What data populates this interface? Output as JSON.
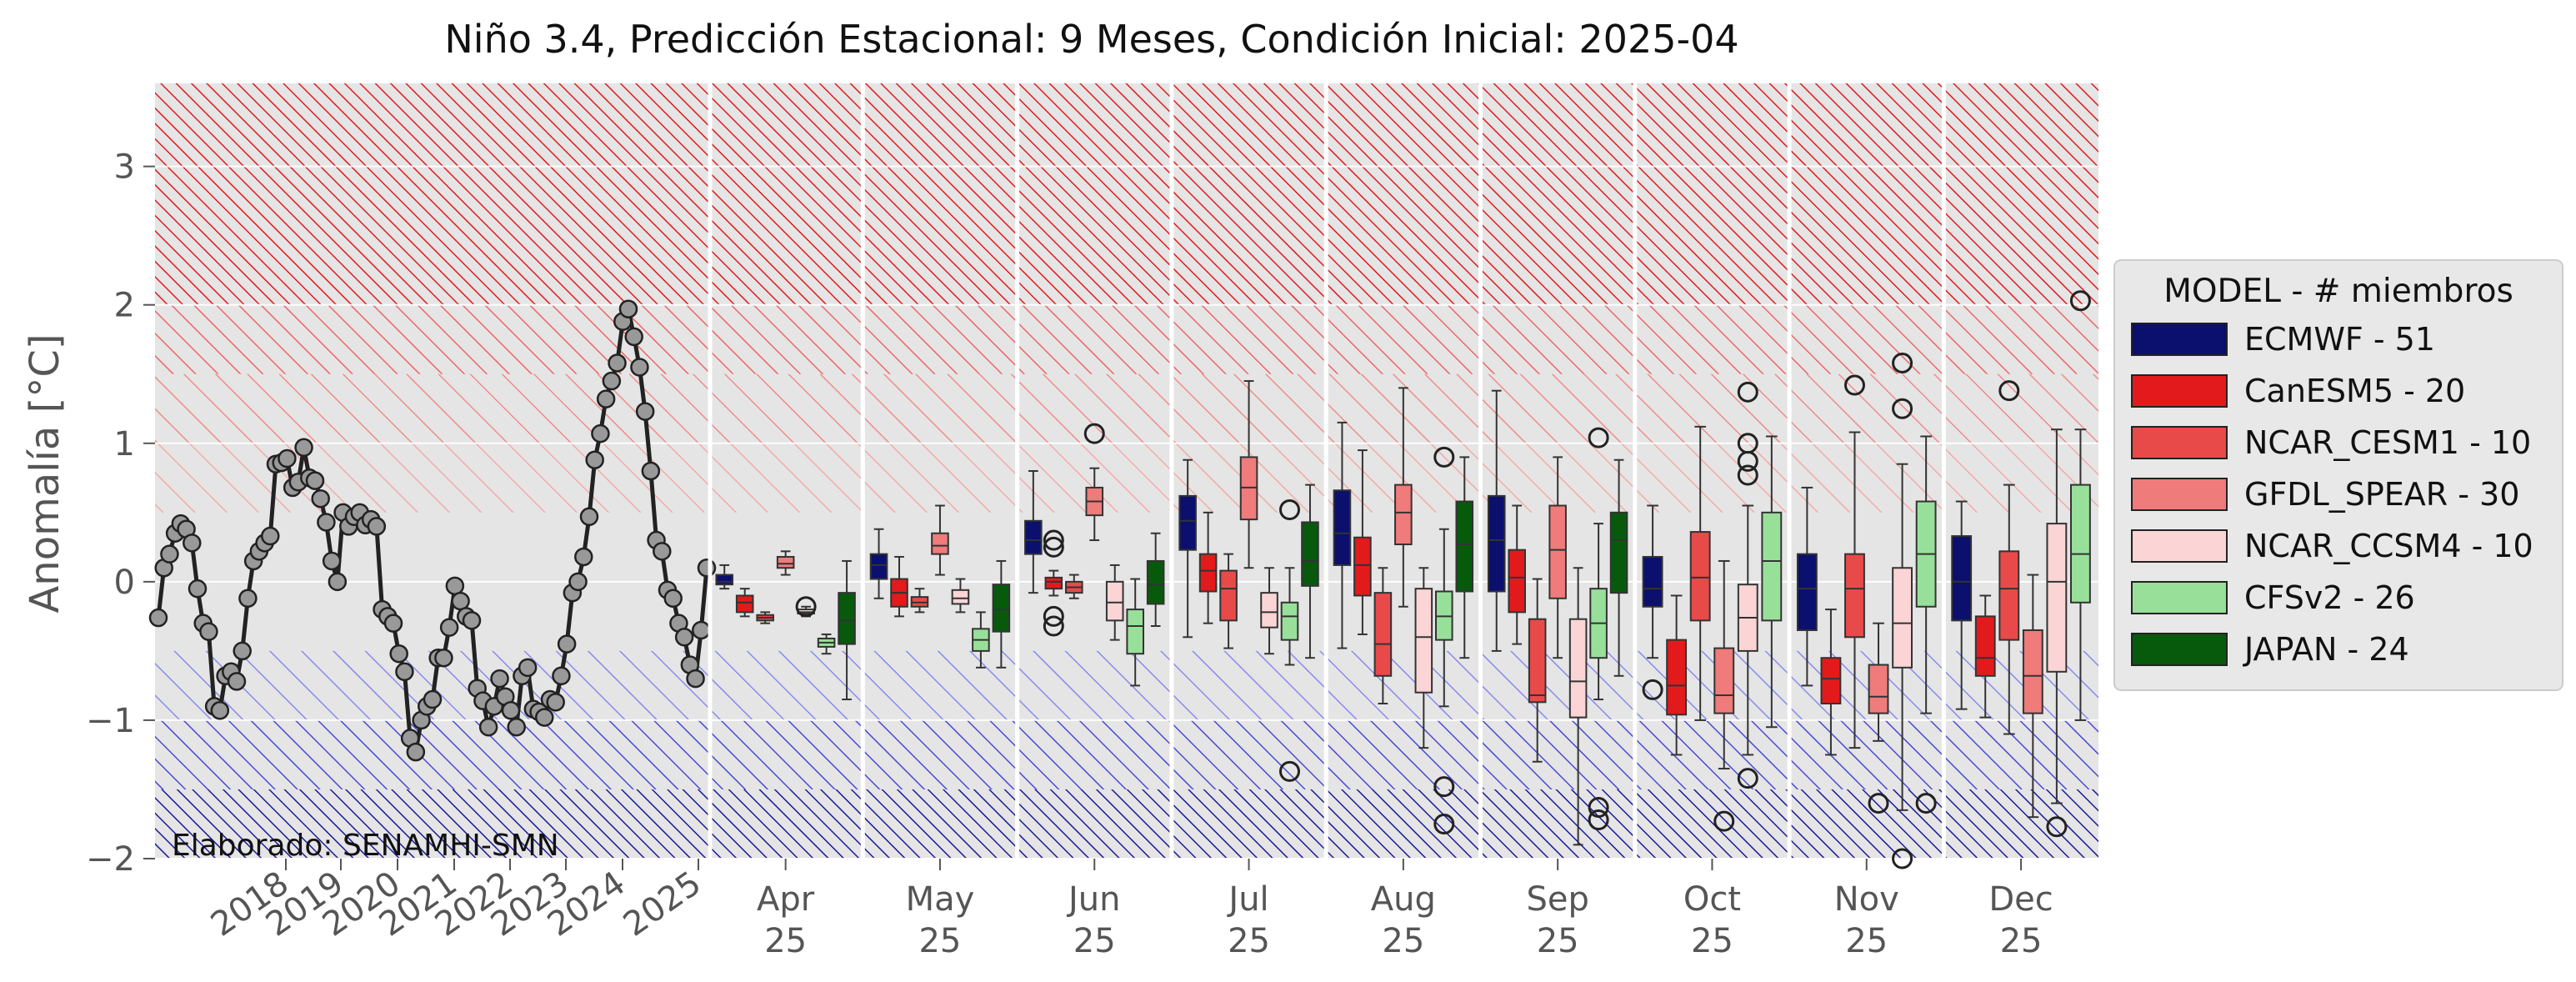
{
  "chart_data": {
    "type": "box",
    "title": "Niño 3.4, Predicción Estacional: 9 Meses, Condición Inicial: 2025-04",
    "ylabel": "Anomalía [°C]",
    "xlabel": "",
    "ylim": [
      -2,
      3.6
    ],
    "yticks": [
      3,
      2,
      1,
      0,
      -1,
      -2
    ],
    "ytick_labels": [
      "3",
      "2",
      "1",
      "0",
      "−1",
      "−2"
    ],
    "grid": true,
    "annotation": "Elaborado: SENAMHI-SMN",
    "legend": {
      "title": "MODEL - # miembros",
      "placement": "right",
      "entries": [
        {
          "label": "ECMWF - 51",
          "color": "#0b0f6e"
        },
        {
          "label": "CanESM5 - 20",
          "color": "#e31a1c"
        },
        {
          "label": "NCAR_CESM1 - 10",
          "color": "#e84a4a"
        },
        {
          "label": "GFDL_SPEAR - 30",
          "color": "#ef7b7b"
        },
        {
          "label": "NCAR_CCSM4 - 10",
          "color": "#fbd5d5"
        },
        {
          "label": "CFSv2 - 26",
          "color": "#98e09a"
        },
        {
          "label": "JAPAN - 24",
          "color": "#075a0c"
        }
      ]
    },
    "bands": [
      {
        "from": 2,
        "to": 3.6,
        "color": "#e31a1c",
        "density": "dense"
      },
      {
        "from": 1.5,
        "to": 2,
        "color": "#ee6666",
        "density": "medium"
      },
      {
        "from": 1,
        "to": 1.5,
        "color": "#f08c8c",
        "density": "sparse"
      },
      {
        "from": 0.5,
        "to": 1,
        "color": "#f4aaaa",
        "density": "sparse"
      },
      {
        "from": -1,
        "to": -0.5,
        "color": "#8a8aee",
        "density": "sparse"
      },
      {
        "from": -1.5,
        "to": -1,
        "color": "#4a4ad6",
        "density": "medium"
      },
      {
        "from": -2,
        "to": -1.5,
        "color": "#1a1a99",
        "density": "dense"
      }
    ],
    "observed": {
      "year_labels": [
        "2018",
        "2019",
        "2020",
        "2021",
        "2022",
        "2023",
        "2024",
        "2025"
      ],
      "values": [
        -0.26,
        0.1,
        0.2,
        0.35,
        0.42,
        0.38,
        0.28,
        -0.05,
        -0.3,
        -0.36,
        -0.9,
        -0.93,
        -0.68,
        -0.65,
        -0.72,
        -0.5,
        -0.12,
        0.15,
        0.22,
        0.28,
        0.33,
        0.85,
        0.86,
        0.89,
        0.68,
        0.72,
        0.97,
        0.75,
        0.73,
        0.6,
        0.43,
        0.15,
        0.0,
        0.5,
        0.4,
        0.47,
        0.5,
        0.41,
        0.45,
        0.4,
        -0.2,
        -0.25,
        -0.3,
        -0.52,
        -0.65,
        -1.13,
        -1.23,
        -1.0,
        -0.9,
        -0.85,
        -0.55,
        -0.55,
        -0.33,
        -0.03,
        -0.14,
        -0.25,
        -0.28,
        -0.77,
        -0.86,
        -1.05,
        -0.9,
        -0.7,
        -0.83,
        -0.93,
        -1.05,
        -0.68,
        -0.62,
        -0.92,
        -0.94,
        -0.98,
        -0.85,
        -0.87,
        -0.68,
        -0.45,
        -0.08,
        0.0,
        0.18,
        0.47,
        0.88,
        1.07,
        1.32,
        1.45,
        1.58,
        1.88,
        1.97,
        1.77,
        1.55,
        1.23,
        0.8,
        0.3,
        0.22,
        -0.06,
        -0.12,
        -0.3,
        -0.4,
        -0.6,
        -0.7,
        -0.35,
        0.1
      ]
    },
    "forecast_months": [
      {
        "label": "Apr",
        "year": "25",
        "boxes": [
          {
            "model": "ECMWF",
            "min": -0.05,
            "q1": -0.02,
            "median": 0.0,
            "q3": 0.05,
            "max": 0.12,
            "outliers": []
          },
          {
            "model": "CanESM5",
            "min": -0.25,
            "q1": -0.22,
            "median": -0.15,
            "q3": -0.1,
            "max": -0.05,
            "outliers": []
          },
          {
            "model": "NCAR_CESM1",
            "min": -0.3,
            "q1": -0.28,
            "median": -0.26,
            "q3": -0.24,
            "max": -0.22,
            "outliers": []
          },
          {
            "model": "GFDL_SPEAR",
            "min": 0.05,
            "q1": 0.1,
            "median": 0.13,
            "q3": 0.18,
            "max": 0.22,
            "outliers": []
          },
          {
            "model": "NCAR_CCSM4",
            "min": -0.25,
            "q1": -0.23,
            "median": -0.22,
            "q3": -0.2,
            "max": -0.18,
            "outliers": [
              -0.18
            ]
          },
          {
            "model": "CFSv2",
            "min": -0.52,
            "q1": -0.47,
            "median": -0.44,
            "q3": -0.41,
            "max": -0.38,
            "outliers": []
          },
          {
            "model": "JAPAN",
            "min": -0.85,
            "q1": -0.45,
            "median": -0.28,
            "q3": -0.08,
            "max": 0.15,
            "outliers": []
          }
        ]
      },
      {
        "label": "May",
        "year": "25",
        "boxes": [
          {
            "model": "ECMWF",
            "min": -0.12,
            "q1": 0.02,
            "median": 0.12,
            "q3": 0.2,
            "max": 0.38,
            "outliers": []
          },
          {
            "model": "CanESM5",
            "min": -0.25,
            "q1": -0.18,
            "median": -0.08,
            "q3": 0.02,
            "max": 0.18,
            "outliers": []
          },
          {
            "model": "NCAR_CESM1",
            "min": -0.22,
            "q1": -0.18,
            "median": -0.15,
            "q3": -0.11,
            "max": -0.05,
            "outliers": []
          },
          {
            "model": "GFDL_SPEAR",
            "min": 0.05,
            "q1": 0.2,
            "median": 0.26,
            "q3": 0.35,
            "max": 0.55,
            "outliers": []
          },
          {
            "model": "NCAR_CCSM4",
            "min": -0.22,
            "q1": -0.16,
            "median": -0.12,
            "q3": -0.06,
            "max": 0.02,
            "outliers": []
          },
          {
            "model": "CFSv2",
            "min": -0.62,
            "q1": -0.5,
            "median": -0.42,
            "q3": -0.34,
            "max": -0.22,
            "outliers": []
          },
          {
            "model": "JAPAN",
            "min": -0.62,
            "q1": -0.36,
            "median": -0.2,
            "q3": -0.02,
            "max": 0.15,
            "outliers": []
          }
        ]
      },
      {
        "label": "Jun",
        "year": "25",
        "boxes": [
          {
            "model": "ECMWF",
            "min": -0.08,
            "q1": 0.2,
            "median": 0.3,
            "q3": 0.44,
            "max": 0.8,
            "outliers": []
          },
          {
            "model": "CanESM5",
            "min": -0.1,
            "q1": -0.05,
            "median": 0.0,
            "q3": 0.03,
            "max": 0.08,
            "outliers": [
              0.3,
              0.25,
              -0.25,
              -0.32
            ]
          },
          {
            "model": "NCAR_CESM1",
            "min": -0.12,
            "q1": -0.08,
            "median": -0.04,
            "q3": 0.0,
            "max": 0.05,
            "outliers": []
          },
          {
            "model": "GFDL_SPEAR",
            "min": 0.3,
            "q1": 0.48,
            "median": 0.58,
            "q3": 0.68,
            "max": 0.82,
            "outliers": [
              1.07
            ]
          },
          {
            "model": "NCAR_CCSM4",
            "min": -0.42,
            "q1": -0.28,
            "median": -0.15,
            "q3": 0.0,
            "max": 0.12,
            "outliers": []
          },
          {
            "model": "CFSv2",
            "min": -0.75,
            "q1": -0.52,
            "median": -0.32,
            "q3": -0.2,
            "max": 0.02,
            "outliers": []
          },
          {
            "model": "JAPAN",
            "min": -0.32,
            "q1": -0.16,
            "median": -0.02,
            "q3": 0.15,
            "max": 0.35,
            "outliers": []
          }
        ]
      },
      {
        "label": "Jul",
        "year": "25",
        "boxes": [
          {
            "model": "ECMWF",
            "min": -0.4,
            "q1": 0.23,
            "median": 0.44,
            "q3": 0.62,
            "max": 0.88,
            "outliers": []
          },
          {
            "model": "CanESM5",
            "min": -0.3,
            "q1": -0.07,
            "median": 0.08,
            "q3": 0.2,
            "max": 0.5,
            "outliers": []
          },
          {
            "model": "NCAR_CESM1",
            "min": -0.48,
            "q1": -0.28,
            "median": -0.05,
            "q3": 0.08,
            "max": 0.2,
            "outliers": []
          },
          {
            "model": "GFDL_SPEAR",
            "min": 0.1,
            "q1": 0.45,
            "median": 0.68,
            "q3": 0.9,
            "max": 1.45,
            "outliers": []
          },
          {
            "model": "NCAR_CCSM4",
            "min": -0.52,
            "q1": -0.33,
            "median": -0.22,
            "q3": -0.08,
            "max": 0.1,
            "outliers": []
          },
          {
            "model": "CFSv2",
            "min": -0.6,
            "q1": -0.42,
            "median": -0.25,
            "q3": -0.15,
            "max": 0.1,
            "outliers": [
              0.52,
              -1.37
            ]
          },
          {
            "model": "JAPAN",
            "min": -0.55,
            "q1": -0.03,
            "median": 0.15,
            "q3": 0.43,
            "max": 0.7,
            "outliers": []
          }
        ]
      },
      {
        "label": "Aug",
        "year": "25",
        "boxes": [
          {
            "model": "ECMWF",
            "min": -0.48,
            "q1": 0.12,
            "median": 0.35,
            "q3": 0.66,
            "max": 1.15,
            "outliers": []
          },
          {
            "model": "CanESM5",
            "min": -0.38,
            "q1": -0.1,
            "median": 0.12,
            "q3": 0.32,
            "max": 0.95,
            "outliers": []
          },
          {
            "model": "NCAR_CESM1",
            "min": -0.88,
            "q1": -0.68,
            "median": -0.45,
            "q3": -0.08,
            "max": 0.1,
            "outliers": []
          },
          {
            "model": "GFDL_SPEAR",
            "min": -0.18,
            "q1": 0.27,
            "median": 0.5,
            "q3": 0.7,
            "max": 1.4,
            "outliers": []
          },
          {
            "model": "NCAR_CCSM4",
            "min": -1.2,
            "q1": -0.8,
            "median": -0.4,
            "q3": -0.05,
            "max": 0.1,
            "outliers": []
          },
          {
            "model": "CFSv2",
            "min": -0.9,
            "q1": -0.42,
            "median": -0.25,
            "q3": -0.07,
            "max": 0.38,
            "outliers": [
              0.9,
              -1.48,
              -1.75
            ]
          },
          {
            "model": "JAPAN",
            "min": -0.55,
            "q1": -0.07,
            "median": 0.27,
            "q3": 0.58,
            "max": 0.9,
            "outliers": []
          }
        ]
      },
      {
        "label": "Sep",
        "year": "25",
        "boxes": [
          {
            "model": "ECMWF",
            "min": -0.5,
            "q1": -0.07,
            "median": 0.3,
            "q3": 0.62,
            "max": 1.38,
            "outliers": []
          },
          {
            "model": "CanESM5",
            "min": -0.45,
            "q1": -0.22,
            "median": 0.03,
            "q3": 0.23,
            "max": 0.55,
            "outliers": []
          },
          {
            "model": "NCAR_CESM1",
            "min": -1.3,
            "q1": -0.87,
            "median": -0.82,
            "q3": -0.27,
            "max": 0.02,
            "outliers": []
          },
          {
            "model": "GFDL_SPEAR",
            "min": -0.55,
            "q1": -0.12,
            "median": 0.23,
            "q3": 0.55,
            "max": 0.9,
            "outliers": []
          },
          {
            "model": "NCAR_CCSM4",
            "min": -1.9,
            "q1": -0.98,
            "median": -0.72,
            "q3": -0.27,
            "max": 0.1,
            "outliers": []
          },
          {
            "model": "CFSv2",
            "min": -0.85,
            "q1": -0.55,
            "median": -0.3,
            "q3": -0.05,
            "max": 0.42,
            "outliers": [
              1.04,
              -1.63,
              -1.72
            ]
          },
          {
            "model": "JAPAN",
            "min": -0.68,
            "q1": -0.08,
            "median": 0.3,
            "q3": 0.5,
            "max": 0.88,
            "outliers": []
          }
        ]
      },
      {
        "label": "Oct",
        "year": "25",
        "boxes": [
          {
            "model": "ECMWF",
            "min": -0.55,
            "q1": -0.18,
            "median": -0.05,
            "q3": 0.18,
            "max": 0.55,
            "outliers": [
              -0.78
            ]
          },
          {
            "model": "CanESM5",
            "min": -1.25,
            "q1": -0.96,
            "median": -0.75,
            "q3": -0.42,
            "max": -0.1,
            "outliers": []
          },
          {
            "model": "NCAR_CESM1",
            "min": -1.0,
            "q1": -0.28,
            "median": 0.03,
            "q3": 0.36,
            "max": 1.12,
            "outliers": []
          },
          {
            "model": "GFDL_SPEAR",
            "min": -1.35,
            "q1": -0.95,
            "median": -0.82,
            "q3": -0.48,
            "max": 0.15,
            "outliers": [
              -1.73
            ]
          },
          {
            "model": "NCAR_CCSM4",
            "min": -1.25,
            "q1": -0.5,
            "median": -0.26,
            "q3": -0.02,
            "max": 0.55,
            "outliers": [
              1.37,
              1.0,
              0.87,
              0.77,
              -1.42
            ]
          },
          {
            "model": "CFSv2",
            "min": -1.05,
            "q1": -0.28,
            "median": 0.15,
            "q3": 0.5,
            "max": 1.05,
            "outliers": []
          }
        ]
      },
      {
        "label": "Nov",
        "year": "25",
        "boxes": [
          {
            "model": "ECMWF",
            "min": -0.75,
            "q1": -0.35,
            "median": -0.05,
            "q3": 0.2,
            "max": 0.68,
            "outliers": []
          },
          {
            "model": "CanESM5",
            "min": -1.25,
            "q1": -0.88,
            "median": -0.7,
            "q3": -0.55,
            "max": -0.2,
            "outliers": []
          },
          {
            "model": "NCAR_CESM1",
            "min": -1.2,
            "q1": -0.4,
            "median": -0.05,
            "q3": 0.2,
            "max": 1.08,
            "outliers": [
              1.42
            ]
          },
          {
            "model": "GFDL_SPEAR",
            "min": -1.15,
            "q1": -0.95,
            "median": -0.83,
            "q3": -0.6,
            "max": -0.3,
            "outliers": [
              -1.6
            ]
          },
          {
            "model": "NCAR_CCSM4",
            "min": -1.65,
            "q1": -0.62,
            "median": -0.3,
            "q3": 0.1,
            "max": 0.85,
            "outliers": [
              1.58,
              1.25,
              -2.0
            ]
          },
          {
            "model": "CFSv2",
            "min": -0.95,
            "q1": -0.18,
            "median": 0.2,
            "q3": 0.58,
            "max": 1.05,
            "outliers": [
              -1.6
            ]
          }
        ]
      },
      {
        "label": "Dec",
        "year": "25",
        "boxes": [
          {
            "model": "ECMWF",
            "min": -0.92,
            "q1": -0.28,
            "median": 0.0,
            "q3": 0.33,
            "max": 0.58,
            "outliers": []
          },
          {
            "model": "CanESM5",
            "min": -0.98,
            "q1": -0.68,
            "median": -0.55,
            "q3": -0.25,
            "max": -0.1,
            "outliers": []
          },
          {
            "model": "NCAR_CESM1",
            "min": -1.1,
            "q1": -0.42,
            "median": -0.05,
            "q3": 0.22,
            "max": 0.7,
            "outliers": [
              1.38
            ]
          },
          {
            "model": "GFDL_SPEAR",
            "min": -1.7,
            "q1": -0.95,
            "median": -0.68,
            "q3": -0.35,
            "max": 0.05,
            "outliers": []
          },
          {
            "model": "NCAR_CCSM4",
            "min": -1.6,
            "q1": -0.65,
            "median": 0.0,
            "q3": 0.42,
            "max": 1.1,
            "outliers": [
              -1.77
            ]
          },
          {
            "model": "CFSv2",
            "min": -1.0,
            "q1": -0.15,
            "median": 0.2,
            "q3": 0.7,
            "max": 1.1,
            "outliers": [
              2.03
            ]
          }
        ]
      }
    ]
  }
}
